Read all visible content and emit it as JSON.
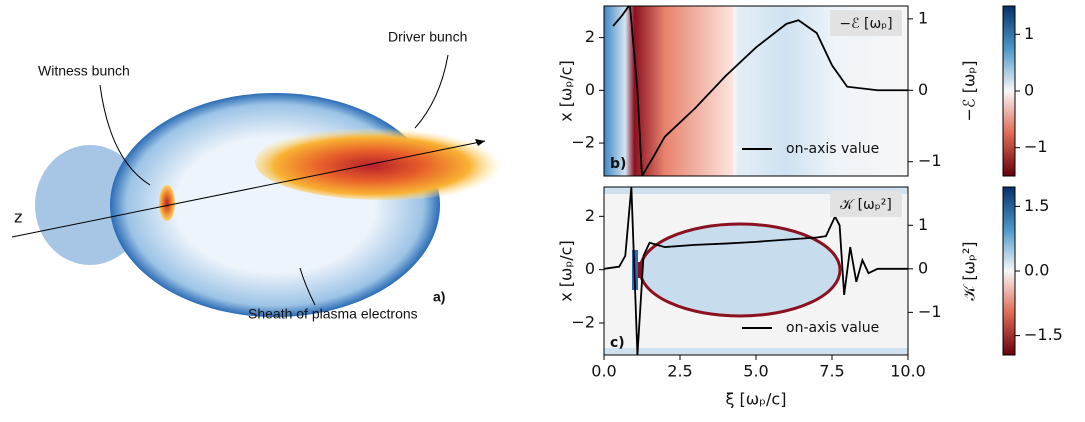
{
  "illustration": {
    "witness": "Witness bunch",
    "driver": "Driver bunch",
    "sheath": "Sheath of plasma electrons",
    "axis": "z",
    "panel": "a)"
  },
  "chart_data": [
    {
      "type": "line",
      "title": "−ℰ [ωₚ]",
      "panel": "b)",
      "ylabel": "x [ωₚ/c]",
      "xlim": [
        0,
        10
      ],
      "ylim": [
        -3.25,
        3.2
      ],
      "y2lim": [
        -1.2,
        1.18
      ],
      "yticks": [
        {
          "value": -2,
          "label": "−2"
        },
        0,
        2
      ],
      "y2ticks": [
        {
          "value": -1,
          "label": "−1"
        },
        0,
        1
      ],
      "series": [
        {
          "name": "on-axis value",
          "color": "#000000",
          "axis": "y2",
          "x": [
            0.3,
            0.6,
            0.85,
            1.1,
            1.25,
            1.6,
            2.0,
            3.0,
            4.0,
            5.0,
            6.0,
            6.4,
            7.0,
            7.5,
            8.0,
            9.0,
            10.0
          ],
          "values": [
            0.9,
            1.05,
            1.2,
            0.0,
            -1.2,
            -0.95,
            -0.65,
            -0.25,
            0.2,
            0.6,
            0.93,
            0.98,
            0.8,
            0.35,
            0.05,
            0.0,
            0.0
          ]
        }
      ],
      "colorbar": {
        "label": "−ℰ [ωₚ]",
        "lim": [
          -1.5,
          1.5
        ],
        "ticks": [
          {
            "value": -1,
            "label": "−1"
          },
          0,
          1
        ]
      }
    },
    {
      "type": "line",
      "title": "𝒦 [ωₚ²]",
      "panel": "c)",
      "ylabel": "x [ωₚ/c]",
      "xlabel": "ξ [ωₚ/c]",
      "xlim": [
        0,
        10
      ],
      "ylim": [
        -3.2,
        3.1
      ],
      "y2lim": [
        -1.98,
        1.88
      ],
      "xticks": [
        {
          "value": 0,
          "label": "0.0"
        },
        {
          "value": 2.5,
          "label": "2.5"
        },
        {
          "value": 5,
          "label": "5.0"
        },
        {
          "value": 7.5,
          "label": "7.5"
        },
        {
          "value": 10,
          "label": "10.0"
        }
      ],
      "yticks": [
        {
          "value": -2,
          "label": "−2"
        },
        0,
        2
      ],
      "y2ticks": [
        {
          "value": -1,
          "label": "−1"
        },
        0,
        1
      ],
      "series": [
        {
          "name": "on-axis value",
          "color": "#000000",
          "axis": "y2",
          "x": [
            0.0,
            0.5,
            0.7,
            0.9,
            1.1,
            1.3,
            1.5,
            2.0,
            3.0,
            4.0,
            5.0,
            6.0,
            7.0,
            7.3,
            7.6,
            7.75,
            7.9,
            8.1,
            8.3,
            8.5,
            8.7,
            9.0,
            10.0
          ],
          "values": [
            0.0,
            0.05,
            0.3,
            1.88,
            -1.98,
            0.3,
            0.6,
            0.5,
            0.55,
            0.58,
            0.62,
            0.67,
            0.72,
            0.75,
            1.2,
            1.0,
            -0.6,
            0.5,
            -0.3,
            0.2,
            -0.1,
            0.0,
            0.0
          ]
        }
      ],
      "colorbar": {
        "label": "𝒦 [ωₚ²]",
        "lim": [
          -1.95,
          1.95
        ],
        "ticks": [
          {
            "value": -1.5,
            "label": "−1.5"
          },
          {
            "value": 0,
            "label": "0.0"
          },
          {
            "value": 1.5,
            "label": "1.5"
          }
        ]
      }
    }
  ]
}
